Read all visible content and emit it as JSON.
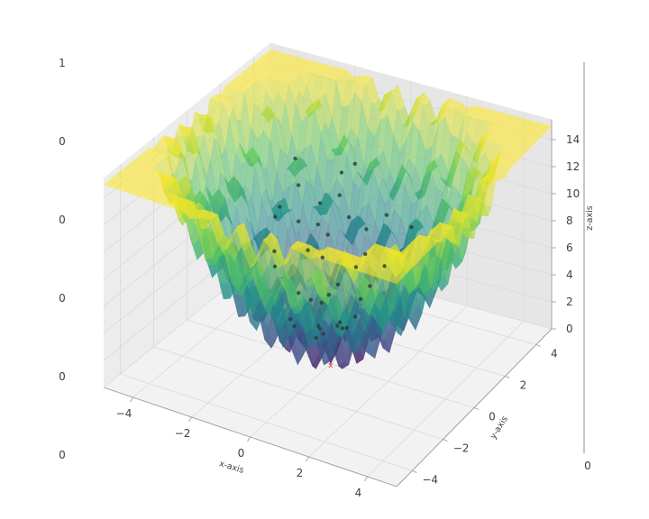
{
  "chart_data": {
    "type": "surface3d",
    "title": "",
    "surface_function": "Rastrigin-like: z = 0.5*(x^2+y^2) + 1.2*(1 - cos(2*pi*x)) + 1.2*(1 - cos(2*pi*y)) (approx.)",
    "colormap": [
      "#440154",
      "#3b528b",
      "#21918c",
      "#5ec962",
      "#fde725"
    ],
    "surface_alpha": 0.55,
    "xlabel": "x-axis",
    "ylabel": "y-axis",
    "zlabel": "z-axis",
    "xlim": [
      -5,
      5
    ],
    "ylim": [
      -5,
      5
    ],
    "zlim": [
      0,
      15
    ],
    "x_ticks": [
      "−4",
      "−2",
      "0",
      "2",
      "4"
    ],
    "x_tick_values": [
      -4,
      -2,
      0,
      2,
      4
    ],
    "y_ticks": [
      "−4",
      "−2",
      "0",
      "2",
      "4"
    ],
    "y_tick_values": [
      -4,
      -2,
      0,
      2,
      4
    ],
    "z_ticks": [
      "0",
      "2",
      "4",
      "6",
      "8",
      "10",
      "12",
      "14"
    ],
    "z_tick_values": [
      0,
      2,
      4,
      6,
      8,
      10,
      12,
      14
    ],
    "minimum_marker": {
      "x": 0,
      "y": 0,
      "z": 0,
      "symbol": "x",
      "color": "#e03030"
    },
    "scatter_points": [
      [
        -2.1,
        0.3,
        9.2
      ],
      [
        -1.8,
        1.2,
        8.1
      ],
      [
        -2.6,
        2.4,
        11.0
      ],
      [
        -1.2,
        2.8,
        10.4
      ],
      [
        -0.9,
        3.1,
        10.9
      ],
      [
        -1.5,
        2.0,
        8.8
      ],
      [
        -1.0,
        1.6,
        7.2
      ],
      [
        -0.6,
        2.2,
        8.1
      ],
      [
        -1.3,
        0.9,
        6.6
      ],
      [
        -0.4,
        0.6,
        4.2
      ],
      [
        0.2,
        1.8,
        6.3
      ],
      [
        0.5,
        2.6,
        8.5
      ],
      [
        1.1,
        1.4,
        6.4
      ],
      [
        1.6,
        2.2,
        8.7
      ],
      [
        -0.2,
        -0.4,
        3.1
      ],
      [
        0.4,
        -0.3,
        3.4
      ],
      [
        0.1,
        0.4,
        2.7
      ],
      [
        -0.7,
        -1.0,
        3.4
      ],
      [
        0.8,
        0.1,
        3.9
      ],
      [
        -1.0,
        -0.2,
        4.8
      ],
      [
        -1.6,
        -0.6,
        6.8
      ],
      [
        -0.5,
        -1.6,
        4.7
      ],
      [
        0.3,
        -1.2,
        4.1
      ],
      [
        -0.3,
        1.0,
        4.6
      ],
      [
        0.6,
        0.8,
        4.3
      ],
      [
        -0.8,
        0.2,
        4.0
      ],
      [
        0.0,
        -0.9,
        2.9
      ],
      [
        -1.4,
        1.7,
        7.6
      ],
      [
        -0.1,
        2.4,
        7.3
      ],
      [
        0.9,
        -0.6,
        3.9
      ],
      [
        -2.4,
        1.1,
        8.9
      ],
      [
        -1.9,
        -0.1,
        7.2
      ],
      [
        0.3,
        0.2,
        2.6
      ],
      [
        -0.6,
        0.5,
        3.6
      ],
      [
        -0.2,
        -0.1,
        2.2
      ],
      [
        0.7,
        1.2,
        4.9
      ],
      [
        -1.1,
        2.5,
        9.1
      ],
      [
        -0.9,
        1.1,
        6.1
      ],
      [
        0.1,
        1.4,
        5.7
      ],
      [
        -2.2,
        1.9,
        9.8
      ]
    ],
    "grid": true,
    "extra_axis": {
      "ticks": [
        "1",
        "0",
        "0",
        "0",
        "0",
        "0"
      ],
      "right_tick": "0"
    }
  }
}
